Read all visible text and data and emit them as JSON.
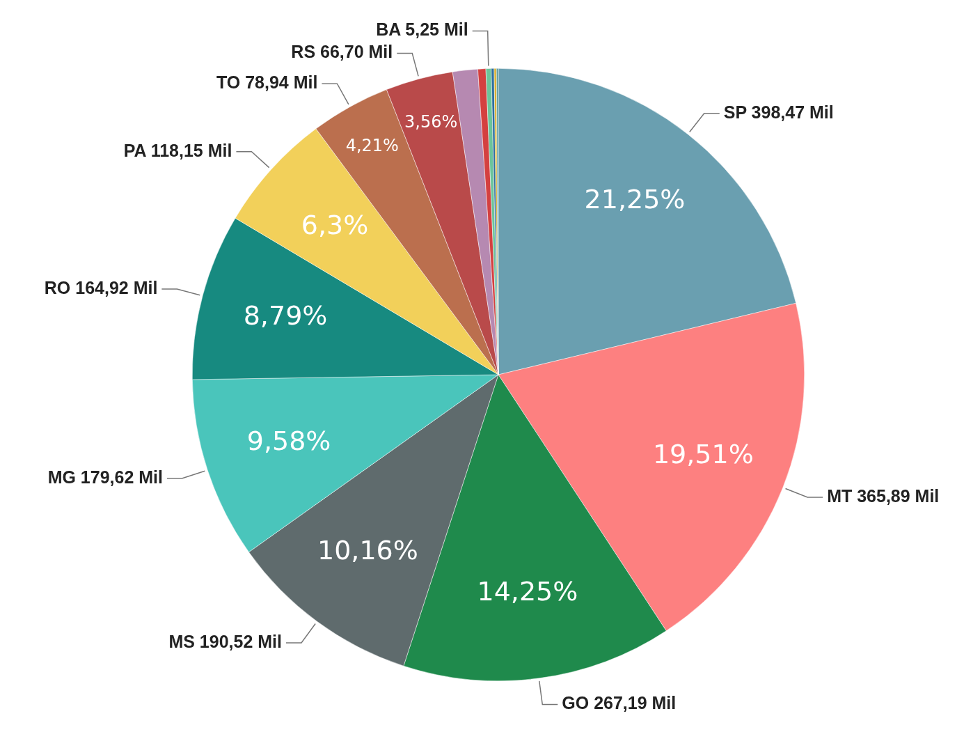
{
  "chart_data": {
    "type": "pie",
    "categories": [
      "SP 398,47 Mil",
      "MT 365,89 Mil",
      "GO 267,19 Mil",
      "MS 190,52 Mil",
      "MG 179,62 Mil",
      "RO 164,92 Mil",
      "PA 118,15 Mil",
      "TO 78,94 Mil",
      "RS 66,70 Mil",
      null,
      null,
      "BA 5,25 Mil",
      null,
      null,
      null
    ],
    "values": [
      21.25,
      19.51,
      14.25,
      10.16,
      9.58,
      8.79,
      6.3,
      4.21,
      3.56,
      1.32,
      0.42,
      0.28,
      0.15,
      0.12,
      0.1
    ],
    "value_labels": [
      "21,25%",
      "19,51%",
      "14,25%",
      "10,16%",
      "9,58%",
      "8,79%",
      "6,3%",
      "4,21%",
      "3,56%",
      null,
      null,
      null,
      null,
      null,
      null
    ],
    "colors": [
      "#6a9fb0",
      "#fd8080",
      "#1f8a4c",
      "#5f6b6d",
      "#4ac5bb",
      "#178a80",
      "#f2d05a",
      "#bb6f4e",
      "#b94a4a",
      "#b689b1",
      "#d44040",
      "#6cc49a",
      "#2f6f9f",
      "#d9b030",
      "#5f9ea0"
    ],
    "legend": false
  }
}
